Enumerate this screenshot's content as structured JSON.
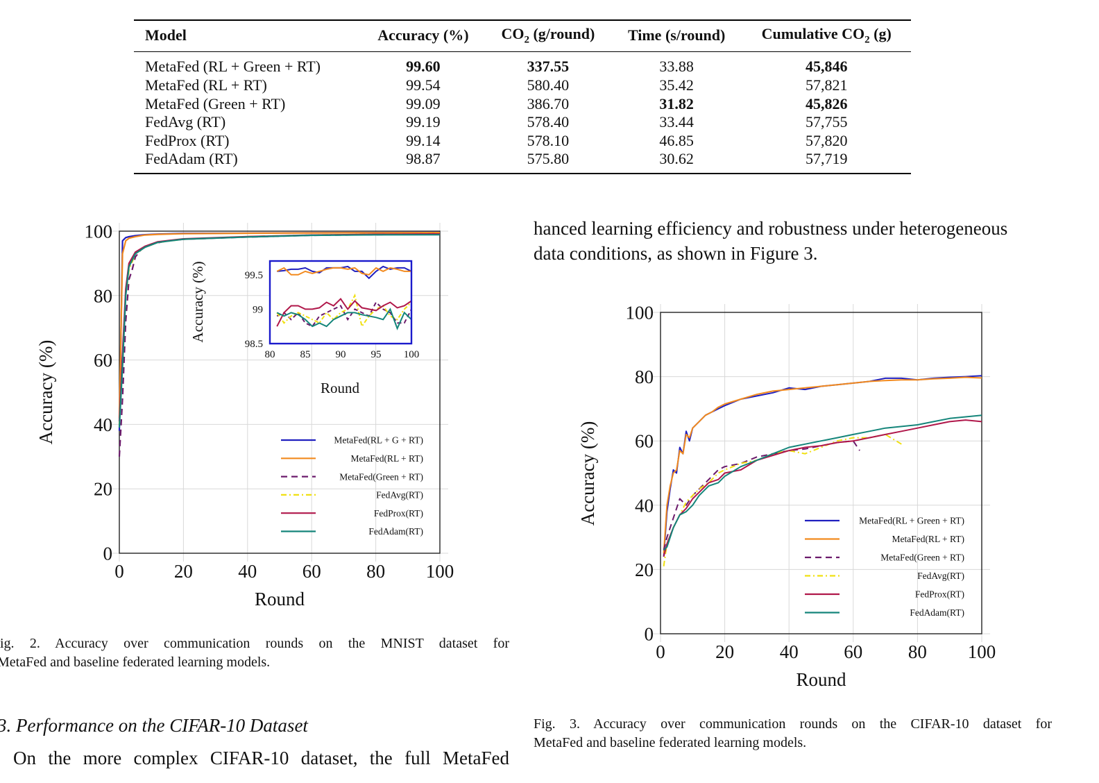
{
  "table": {
    "headers": [
      "Model",
      "Accuracy (%)",
      "CO2 (g/round)",
      "Time (s/round)",
      "Cumulative CO2 (g)"
    ],
    "rows": [
      {
        "model": "MetaFed (RL + Green + RT)",
        "accuracy": "99.60",
        "co2": "337.55",
        "time": "33.88",
        "cumulative": "45,846",
        "bold": [
          "accuracy",
          "co2",
          "cumulative"
        ]
      },
      {
        "model": "MetaFed (RL + RT)",
        "accuracy": "99.54",
        "co2": "580.40",
        "time": "35.42",
        "cumulative": "57,821",
        "bold": []
      },
      {
        "model": "MetaFed (Green + RT)",
        "accuracy": "99.09",
        "co2": "386.70",
        "time": "31.82",
        "cumulative": "45,826",
        "bold": [
          "time",
          "cumulative"
        ]
      },
      {
        "model": "FedAvg (RT)",
        "accuracy": "99.19",
        "co2": "578.40",
        "time": "33.44",
        "cumulative": "57,755",
        "bold": []
      },
      {
        "model": "FedProx (RT)",
        "accuracy": "99.14",
        "co2": "578.10",
        "time": "46.85",
        "cumulative": "57,820",
        "bold": []
      },
      {
        "model": "FedAdam (RT)",
        "accuracy": "98.87",
        "co2": "575.80",
        "time": "30.62",
        "cumulative": "57,719",
        "bold": []
      }
    ]
  },
  "text": {
    "right_paragraph_line1": "hanced learning efficiency and robustness under heterogeneous",
    "right_paragraph_line2": "data conditions, as shown in Figure 3.",
    "fig2_caption_line1": "ig. 2.  Accuracy over communication rounds on the MNIST dataset for",
    "fig2_caption_line2": "MetaFed and baseline federated learning models.",
    "fig3_caption_line1": "Fig. 3.  Accuracy over communication rounds on the CIFAR-10 dataset for",
    "fig3_caption_line2": "MetaFed and baseline federated learning models.",
    "section_heading": "3.  Performance on the CIFAR-10 Dataset",
    "left_paragraph_line1": "On the more complex CIFAR-10 dataset, the full MetaFed"
  },
  "colors": {
    "MetaFed(RL + G + RT)": "#1f1fbf",
    "MetaFed(RL + RT)": "#f28a1e",
    "MetaFed(Green + RT)": "#6b1a6b",
    "FedAvg(RT)": "#f0e010",
    "FedProx(RT)": "#b0174a",
    "FedAdam(RT)": "#14857a",
    "inset_border": "#1a1acc"
  },
  "chart_data": [
    {
      "id": "fig2",
      "type": "line",
      "title": "",
      "xlabel": "Round",
      "ylabel": "Accuracy (%)",
      "xlim": [
        0,
        100
      ],
      "ylim": [
        0,
        100
      ],
      "xticks": [
        "0",
        "20",
        "40",
        "60",
        "80",
        "100"
      ],
      "yticks": [
        "0",
        "20",
        "40",
        "60",
        "80",
        "100"
      ],
      "grid": true,
      "legend_position": "bottom-right",
      "series": [
        {
          "name": "MetaFed(RL + G + RT)",
          "style": "solid",
          "x": [
            0,
            1,
            2,
            3,
            5,
            8,
            12,
            20,
            40,
            60,
            80,
            100
          ],
          "y": [
            38,
            97,
            98,
            98.3,
            98.6,
            98.9,
            99.1,
            99.3,
            99.4,
            99.5,
            99.55,
            99.6
          ]
        },
        {
          "name": "MetaFed(RL + RT)",
          "style": "solid",
          "x": [
            0,
            1,
            2,
            3,
            5,
            8,
            12,
            20,
            40,
            60,
            80,
            100
          ],
          "y": [
            42,
            93,
            97,
            97.8,
            98.3,
            98.8,
            99.0,
            99.2,
            99.35,
            99.45,
            99.5,
            99.55
          ]
        },
        {
          "name": "MetaFed(Green + RT)",
          "style": "dashed",
          "x": [
            0,
            1,
            2,
            3,
            4,
            5,
            7,
            10,
            15,
            20,
            40,
            60,
            80,
            100
          ],
          "y": [
            30,
            48,
            72,
            85,
            88,
            92,
            94.5,
            96,
            97,
            97.5,
            98.2,
            98.7,
            98.9,
            99.1
          ]
        },
        {
          "name": "FedAvg(RT)",
          "style": "dashdot",
          "x": [
            0,
            1,
            2,
            3,
            5,
            8,
            12,
            20,
            40,
            60,
            80,
            100
          ],
          "y": [
            40,
            60,
            80,
            88,
            93,
            95,
            96.5,
            97.5,
            98.3,
            98.8,
            99.0,
            99.2
          ]
        },
        {
          "name": "FedProx(RT)",
          "style": "solid",
          "x": [
            0,
            1,
            2,
            3,
            5,
            8,
            12,
            20,
            40,
            60,
            80,
            100
          ],
          "y": [
            41,
            62,
            82,
            90,
            93.5,
            95.3,
            96.7,
            97.6,
            98.3,
            98.8,
            99.0,
            99.14
          ]
        },
        {
          "name": "FedAdam(RT)",
          "style": "solid",
          "x": [
            0,
            1,
            2,
            3,
            5,
            8,
            12,
            20,
            40,
            60,
            80,
            100
          ],
          "y": [
            39,
            58,
            80,
            89,
            93,
            95,
            96.5,
            97.5,
            98.2,
            98.7,
            98.85,
            98.87
          ]
        }
      ],
      "inset": {
        "xlabel": "Round",
        "ylabel": "Accuracy (%)",
        "xlim": [
          80,
          100
        ],
        "ylim": [
          98.5,
          99.7
        ],
        "xticks": [
          "80",
          "85",
          "90",
          "95",
          "100"
        ],
        "yticks": [
          "98.5",
          "99",
          "99.5"
        ],
        "series": [
          {
            "name": "MetaFed(RL + G + RT)",
            "x": [
              81,
              82,
              83,
              84,
              85,
              86,
              87,
              88,
              89,
              90,
              91,
              92,
              93,
              94,
              95,
              96,
              97,
              98,
              99,
              100
            ],
            "y": [
              99.55,
              99.56,
              99.58,
              99.58,
              99.6,
              99.55,
              99.53,
              99.6,
              99.6,
              99.6,
              99.62,
              99.55,
              99.55,
              99.45,
              99.55,
              99.62,
              99.58,
              99.6,
              99.6,
              99.55
            ]
          },
          {
            "name": "MetaFed(RL + RT)",
            "x": [
              81,
              82,
              83,
              84,
              85,
              86,
              87,
              88,
              89,
              90,
              91,
              92,
              93,
              94,
              95,
              96,
              97,
              98,
              99,
              100
            ],
            "y": [
              99.55,
              99.6,
              99.5,
              99.5,
              99.55,
              99.52,
              99.55,
              99.58,
              99.6,
              99.6,
              99.58,
              99.6,
              99.52,
              99.5,
              99.6,
              99.55,
              99.6,
              99.58,
              99.55,
              99.55
            ]
          },
          {
            "name": "MetaFed(Green + RT)",
            "x": [
              81,
              82,
              83,
              84,
              85,
              86,
              87,
              88,
              89,
              90,
              91,
              92,
              93,
              94,
              95,
              96,
              97,
              98,
              99,
              100
            ],
            "y": [
              98.9,
              98.95,
              98.85,
              98.95,
              98.8,
              98.75,
              98.9,
              98.95,
              99.0,
              99.05,
              98.85,
              99.0,
              98.95,
              98.9,
              99.1,
              99.0,
              98.95,
              98.8,
              98.8,
              99.0
            ]
          },
          {
            "name": "FedAvg(RT)",
            "x": [
              81,
              82,
              83,
              84,
              85,
              86,
              87,
              88,
              89,
              90,
              91,
              92,
              93,
              94,
              95,
              96,
              97,
              98,
              99,
              100
            ],
            "y": [
              98.95,
              98.8,
              98.9,
              98.95,
              98.9,
              98.85,
              98.8,
              98.95,
              98.85,
              98.95,
              99.0,
              99.2,
              98.75,
              98.9,
              99.0,
              99.05,
              98.9,
              98.85,
              99.0,
              99.1
            ]
          },
          {
            "name": "FedProx(RT)",
            "x": [
              81,
              82,
              83,
              84,
              85,
              86,
              87,
              88,
              89,
              90,
              91,
              92,
              93,
              94,
              95,
              96,
              97,
              98,
              99,
              100
            ],
            "y": [
              98.75,
              98.95,
              99.05,
              99.05,
              99.0,
              99.0,
              99.02,
              99.1,
              99.05,
              99.15,
              99.0,
              99.12,
              99.02,
              99.0,
              98.98,
              99.05,
              99.1,
              99.02,
              99.05,
              99.12
            ]
          },
          {
            "name": "FedAdam(RT)",
            "x": [
              81,
              82,
              83,
              84,
              85,
              86,
              87,
              88,
              89,
              90,
              91,
              92,
              93,
              94,
              95,
              96,
              97,
              98,
              99,
              100
            ],
            "y": [
              98.95,
              98.9,
              98.95,
              98.92,
              98.85,
              98.75,
              98.8,
              98.75,
              98.85,
              98.9,
              98.95,
              98.95,
              98.92,
              98.9,
              98.88,
              98.85,
              99.0,
              98.72,
              98.95,
              98.85
            ]
          }
        ]
      }
    },
    {
      "id": "fig3",
      "type": "line",
      "title": "",
      "xlabel": "Round",
      "ylabel": "Accuracy (%)",
      "xlim": [
        0,
        100
      ],
      "ylim": [
        0,
        100
      ],
      "xticks": [
        "0",
        "20",
        "40",
        "60",
        "80",
        "100"
      ],
      "yticks": [
        "0",
        "20",
        "40",
        "60",
        "80",
        "100"
      ],
      "grid": true,
      "legend_position": "bottom-right",
      "series": [
        {
          "name": "MetaFed(RL + Green + RT)",
          "style": "solid",
          "x": [
            1,
            2,
            3,
            4,
            5,
            6,
            7,
            8,
            9,
            10,
            12,
            14,
            16,
            18,
            20,
            25,
            30,
            35,
            40,
            45,
            50,
            55,
            60,
            65,
            70,
            75,
            80,
            85,
            90,
            95,
            100
          ],
          "y": [
            24,
            38,
            45,
            51,
            50,
            58,
            56,
            63,
            60,
            64,
            66,
            68,
            69,
            70,
            71,
            73,
            74,
            75,
            76.5,
            76,
            77,
            77.5,
            78,
            78.5,
            79.5,
            79.5,
            79,
            79.5,
            79.8,
            80,
            80.3
          ]
        },
        {
          "name": "MetaFed(RL + RT)",
          "style": "solid",
          "x": [
            1,
            2,
            3,
            4,
            5,
            6,
            7,
            8,
            9,
            10,
            12,
            14,
            16,
            18,
            20,
            25,
            30,
            35,
            40,
            45,
            50,
            55,
            60,
            65,
            70,
            75,
            80,
            85,
            90,
            95,
            100
          ],
          "y": [
            25,
            40,
            46,
            50,
            51,
            57,
            56,
            62,
            61,
            64,
            66,
            68,
            69,
            70.5,
            71.5,
            73,
            74.5,
            75.5,
            76,
            76.5,
            77,
            77.5,
            78,
            78.5,
            78.8,
            79,
            79,
            79.3,
            79.5,
            79.8,
            79.6
          ]
        },
        {
          "name": "MetaFed(Green + RT)",
          "style": "dashed",
          "x": [
            1,
            2,
            4,
            6,
            8,
            10,
            12,
            15,
            18,
            20,
            25,
            30,
            35,
            40,
            45,
            50,
            55,
            60,
            62
          ],
          "y": [
            26,
            30,
            36,
            42,
            40,
            43,
            45,
            48,
            51,
            52,
            53,
            55,
            56,
            57,
            57.5,
            58.5,
            59.5,
            60,
            57
          ]
        },
        {
          "name": "FedAvg(RT)",
          "style": "dashdot",
          "x": [
            1,
            2,
            4,
            6,
            8,
            10,
            12,
            15,
            18,
            20,
            25,
            30,
            35,
            40,
            45,
            50,
            55,
            60,
            65,
            70,
            75
          ],
          "y": [
            21,
            28,
            33,
            37,
            41,
            43,
            45,
            47,
            50,
            51,
            53,
            54,
            56,
            57,
            56,
            58,
            60,
            61,
            61,
            62,
            59
          ]
        },
        {
          "name": "FedProx(RT)",
          "style": "solid",
          "x": [
            1,
            2,
            4,
            6,
            8,
            10,
            12,
            15,
            18,
            20,
            25,
            30,
            35,
            40,
            45,
            50,
            55,
            60,
            65,
            70,
            75,
            80,
            85,
            90,
            95,
            100
          ],
          "y": [
            24,
            28,
            33,
            37,
            39,
            42,
            44,
            47,
            48,
            50,
            51,
            54,
            55.5,
            57,
            58,
            58.5,
            59.5,
            60,
            61,
            62,
            63,
            64,
            65,
            66,
            66.5,
            66
          ]
        },
        {
          "name": "FedAdam(RT)",
          "style": "solid",
          "x": [
            1,
            2,
            4,
            6,
            8,
            10,
            12,
            15,
            18,
            20,
            25,
            30,
            35,
            40,
            45,
            50,
            55,
            60,
            65,
            70,
            75,
            80,
            85,
            90,
            95,
            100
          ],
          "y": [
            26,
            27,
            33,
            37,
            38,
            40,
            43,
            46,
            47,
            49,
            52,
            54,
            56,
            58,
            59,
            60,
            61,
            62,
            63,
            64,
            64.5,
            65,
            66,
            67,
            67.5,
            68
          ]
        }
      ]
    }
  ],
  "fig2_legend": [
    "MetaFed(RL + G + RT)",
    "MetaFed(RL + RT)",
    "MetaFed(Green + RT)",
    "FedAvg(RT)",
    "FedProx(RT)",
    "FedAdam(RT)"
  ],
  "fig3_legend": [
    "MetaFed(RL + Green + RT)",
    "MetaFed(RL + RT)",
    "MetaFed(Green + RT)",
    "FedAvg(RT)",
    "FedProx(RT)",
    "FedAdam(RT)"
  ]
}
